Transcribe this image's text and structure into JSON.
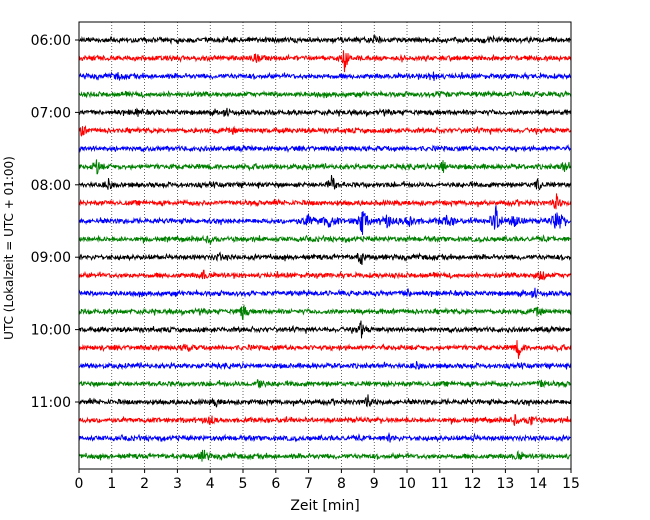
{
  "chart_data": {
    "type": "line",
    "title": "",
    "xlabel": "Zeit  [min]",
    "ylabel": "UTC (Lokalzeit = UTC + 01:00)",
    "xlim": [
      0,
      15
    ],
    "x_ticks": [
      "0",
      "1",
      "2",
      "3",
      "4",
      "5",
      "6",
      "7",
      "8",
      "9",
      "10",
      "11",
      "12",
      "13",
      "14",
      "15"
    ],
    "y_tick_labels": [
      "06:00",
      "07:00",
      "08:00",
      "09:00",
      "10:00",
      "11:00"
    ],
    "rows_per_hour": 4,
    "row_minutes": 15,
    "start": "06:00",
    "end": "11:45",
    "grid": "vertical dotted at each minute",
    "line_colors": [
      "#000000",
      "#ff0000",
      "#0000ff",
      "#008000"
    ],
    "traces": [
      {
        "start": "06:00",
        "events": [
          {
            "t": 9.0,
            "amp": 1.0
          },
          {
            "t": 12.6,
            "amp": 0.6
          }
        ]
      },
      {
        "start": "06:15",
        "events": [
          {
            "t": 8.1,
            "amp": 3.0
          },
          {
            "t": 5.4,
            "amp": 0.8
          }
        ]
      },
      {
        "start": "06:30",
        "events": [
          {
            "t": 1.2,
            "amp": 0.7
          },
          {
            "t": 10.8,
            "amp": 1.2
          }
        ]
      },
      {
        "start": "06:45",
        "events": [
          {
            "t": 11.1,
            "amp": 0.8
          }
        ]
      },
      {
        "start": "07:00",
        "events": [
          {
            "t": 1.8,
            "amp": 0.8
          },
          {
            "t": 4.5,
            "amp": 0.6
          }
        ]
      },
      {
        "start": "07:15",
        "events": [
          {
            "t": 0.1,
            "amp": 1.2
          },
          {
            "t": 4.7,
            "amp": 0.6
          }
        ]
      },
      {
        "start": "07:30",
        "events": []
      },
      {
        "start": "07:45",
        "events": [
          {
            "t": 0.55,
            "amp": 1.6
          },
          {
            "t": 11.1,
            "amp": 1.6
          },
          {
            "t": 14.8,
            "amp": 1.0
          }
        ]
      },
      {
        "start": "08:00",
        "events": [
          {
            "t": 0.9,
            "amp": 1.2
          },
          {
            "t": 7.7,
            "amp": 2.4
          },
          {
            "t": 14.0,
            "amp": 1.4
          }
        ]
      },
      {
        "start": "08:15",
        "events": [
          {
            "t": 14.55,
            "amp": 2.0
          }
        ]
      },
      {
        "start": "08:30",
        "events": [
          {
            "t": 8.65,
            "amp": 2.4
          },
          {
            "t": 12.7,
            "amp": 2.6
          },
          {
            "t": 14.6,
            "amp": 2.2
          }
        ]
      },
      {
        "start": "08:45",
        "events": [
          {
            "t": 4.0,
            "amp": 0.8
          }
        ]
      },
      {
        "start": "09:00",
        "events": [
          {
            "t": 8.6,
            "amp": 2.0
          },
          {
            "t": 4.3,
            "amp": 0.8
          }
        ]
      },
      {
        "start": "09:15",
        "events": [
          {
            "t": 14.1,
            "amp": 1.8
          },
          {
            "t": 3.8,
            "amp": 1.0
          }
        ]
      },
      {
        "start": "09:30",
        "events": [
          {
            "t": 10.0,
            "amp": 1.0
          },
          {
            "t": 13.9,
            "amp": 0.8
          }
        ]
      },
      {
        "start": "09:45",
        "events": [
          {
            "t": 5.0,
            "amp": 1.8
          },
          {
            "t": 14.0,
            "amp": 1.2
          }
        ]
      },
      {
        "start": "10:00",
        "events": [
          {
            "t": 8.6,
            "amp": 2.0
          }
        ]
      },
      {
        "start": "10:15",
        "events": [
          {
            "t": 13.4,
            "amp": 2.2
          },
          {
            "t": 3.3,
            "amp": 1.0
          }
        ]
      },
      {
        "start": "10:30",
        "events": [
          {
            "t": 10.3,
            "amp": 0.8
          }
        ]
      },
      {
        "start": "10:45",
        "events": [
          {
            "t": 5.5,
            "amp": 1.8
          },
          {
            "t": 14.1,
            "amp": 1.0
          }
        ]
      },
      {
        "start": "11:00",
        "events": [
          {
            "t": 8.8,
            "amp": 1.6
          },
          {
            "t": 4.2,
            "amp": 0.8
          }
        ]
      },
      {
        "start": "11:15",
        "events": [
          {
            "t": 4.0,
            "amp": 1.2
          },
          {
            "t": 13.8,
            "amp": 1.4
          },
          {
            "t": 13.3,
            "amp": 1.0
          }
        ]
      },
      {
        "start": "11:30",
        "events": [
          {
            "t": 9.5,
            "amp": 1.0
          },
          {
            "t": 12.0,
            "amp": 0.6
          }
        ]
      },
      {
        "start": "11:45",
        "events": [
          {
            "t": 3.8,
            "amp": 1.6
          },
          {
            "t": 13.4,
            "amp": 1.0
          }
        ]
      }
    ]
  }
}
